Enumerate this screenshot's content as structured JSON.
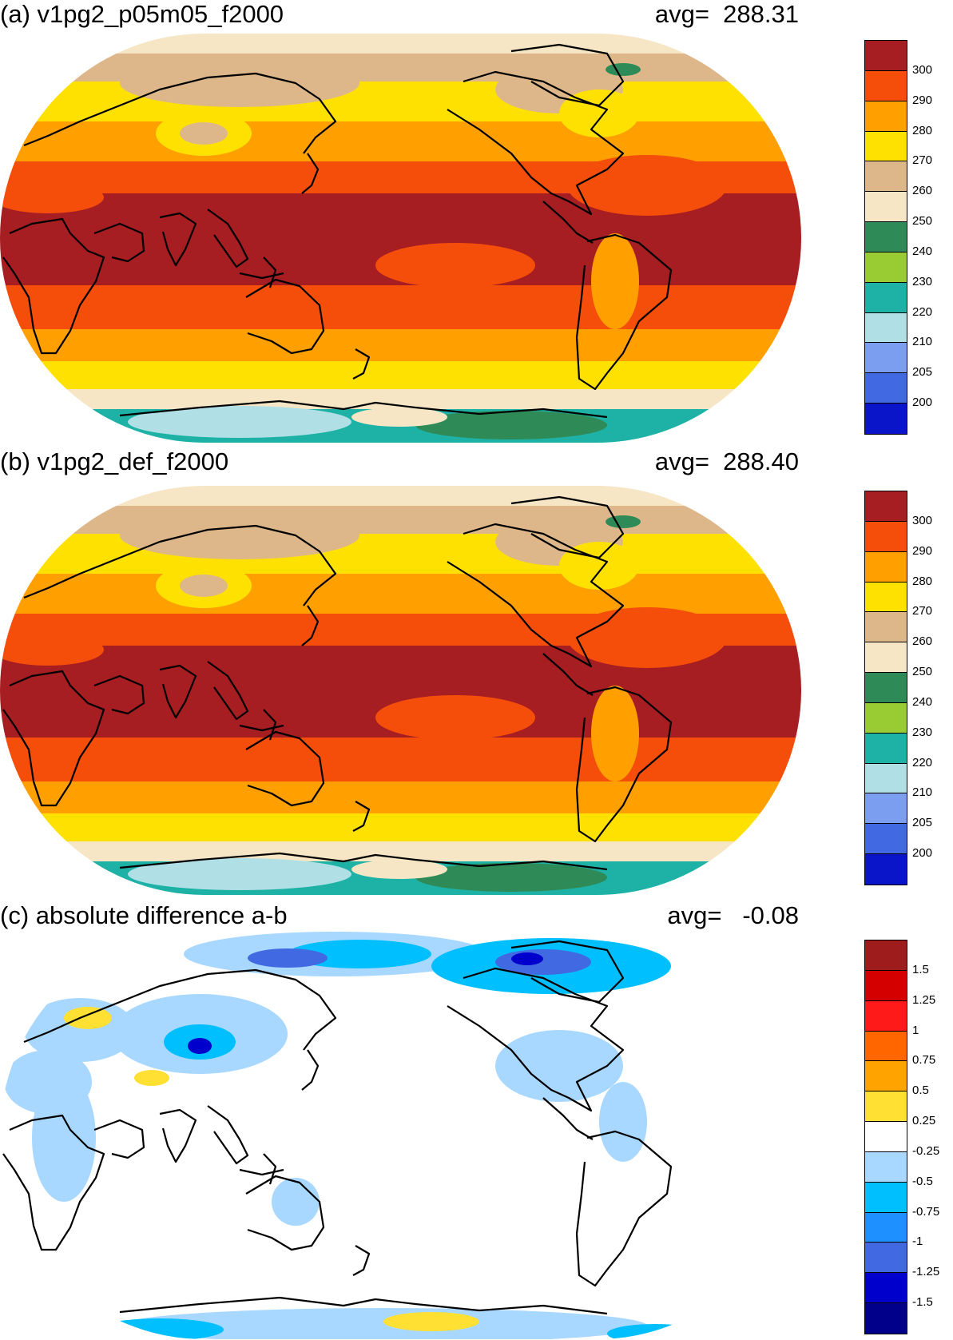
{
  "panels": [
    {
      "title": "(a) v1pg2_p05m05_f2000",
      "avg_label": "avg=",
      "avg_value": "288.31",
      "map_type": "field",
      "colorbar": {
        "colors": [
          "#a61d22",
          "#f54e0a",
          "#ff9f00",
          "#ffe100",
          "#ddb78a",
          "#f6e6c6",
          "#2e8b57",
          "#99cc33",
          "#1eb2a6",
          "#b0e0e6",
          "#7b9ef0",
          "#4169e1",
          "#0a14c8"
        ],
        "labels": [
          "300",
          "290",
          "280",
          "270",
          "260",
          "250",
          "240",
          "230",
          "220",
          "210",
          "205",
          "200"
        ]
      }
    },
    {
      "title": "(b) v1pg2_def_f2000",
      "avg_label": "avg=",
      "avg_value": "288.40",
      "map_type": "field",
      "colorbar": {
        "colors": [
          "#a61d22",
          "#f54e0a",
          "#ff9f00",
          "#ffe100",
          "#ddb78a",
          "#f6e6c6",
          "#2e8b57",
          "#99cc33",
          "#1eb2a6",
          "#b0e0e6",
          "#7b9ef0",
          "#4169e1",
          "#0a14c8"
        ],
        "labels": [
          "300",
          "290",
          "280",
          "270",
          "260",
          "250",
          "240",
          "230",
          "220",
          "210",
          "205",
          "200"
        ]
      }
    },
    {
      "title": "(c) absolute difference a-b",
      "avg_label": "avg=",
      "avg_value": " -0.08",
      "map_type": "difference",
      "colorbar": {
        "colors": [
          "#9e1c1c",
          "#d40000",
          "#ff1a1a",
          "#ff6600",
          "#ffa300",
          "#ffe033",
          "#ffffff",
          "#a8d8ff",
          "#00bfff",
          "#1e90ff",
          "#4169e1",
          "#0000cd",
          "#00008b"
        ],
        "labels": [
          "1.5",
          "1.25",
          "1",
          "0.75",
          "0.5",
          "0.25",
          "-0.25",
          "-0.5",
          "-0.75",
          "-1",
          "-1.25",
          "-1.5"
        ]
      }
    }
  ]
}
